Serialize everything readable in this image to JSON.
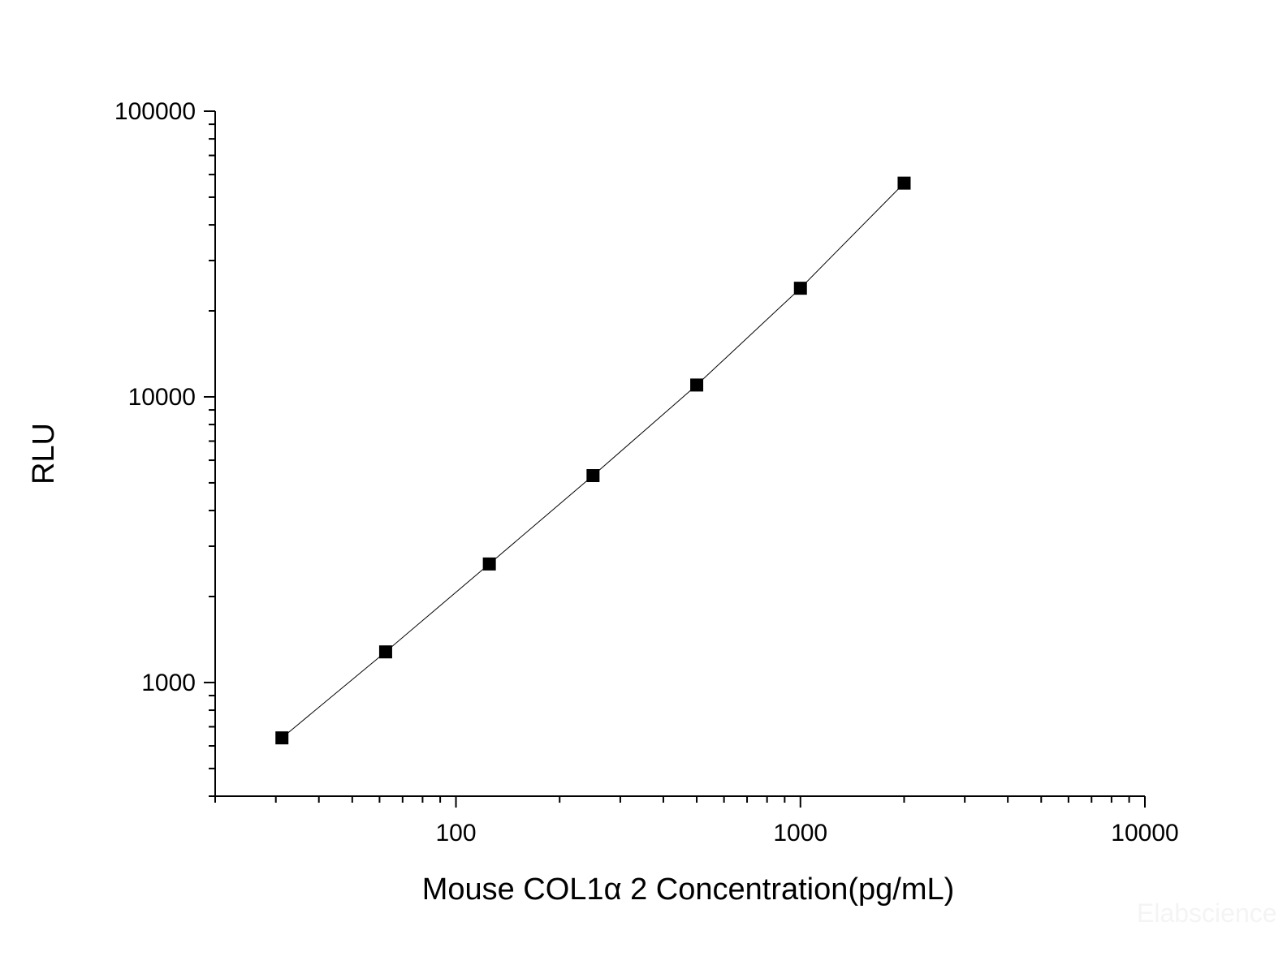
{
  "chart_data": {
    "type": "scatter",
    "title": "",
    "xlabel": "Mouse COL1α 2 Concentration(pg/mL)",
    "ylabel": "RLU",
    "x_scale": "log",
    "y_scale": "log",
    "xlim": [
      20,
      10000
    ],
    "ylim": [
      400,
      100000
    ],
    "x_ticks": [
      100,
      1000,
      10000
    ],
    "x_tick_labels": [
      "100",
      "1000",
      "10000"
    ],
    "y_ticks": [
      1000,
      10000,
      100000
    ],
    "y_tick_labels": [
      "1000",
      "10000",
      "100000"
    ],
    "grid": false,
    "legend": "none",
    "series": [
      {
        "marker": "square",
        "line": "smooth-fit",
        "color": "#000000",
        "x": [
          31.25,
          62.5,
          125,
          250,
          500,
          1000,
          2000
        ],
        "y": [
          640,
          1280,
          2600,
          5300,
          11000,
          24000,
          56000
        ]
      }
    ]
  },
  "watermark": "Elabscience"
}
